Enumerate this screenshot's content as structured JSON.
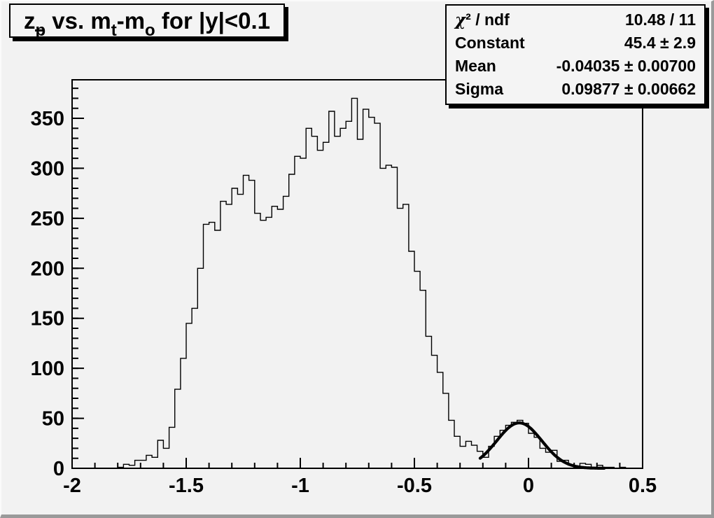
{
  "canvas": {
    "background_color": "#f2f2f2",
    "bevel_dark_color": "#9a9a9a",
    "bevel_light_color": "#fbfbfb",
    "ink_color": "#000000"
  },
  "title": {
    "plain": "z_p̄ vs. m_t-m_o for |y|<0.1",
    "segments": [
      {
        "text": "z",
        "role": "base"
      },
      {
        "text": "p",
        "role": "sub_overline"
      },
      {
        "text": " vs. m",
        "role": "base"
      },
      {
        "text": "t",
        "role": "sub"
      },
      {
        "text": "-m",
        "role": "base"
      },
      {
        "text": "o",
        "role": "sub"
      },
      {
        "text": " for |y|<0.1",
        "role": "base"
      }
    ]
  },
  "stats": {
    "rows": [
      {
        "label": "χ² / ndf",
        "value": "10.48 / 11",
        "label_has_chi": true
      },
      {
        "label": "Constant",
        "value": "45.4 ± 2.9",
        "label_has_chi": false
      },
      {
        "label": "Mean",
        "value": "-0.04035 ± 0.00700",
        "label_has_chi": false
      },
      {
        "label": "Sigma",
        "value": "0.09877 ± 0.00662",
        "label_has_chi": false
      }
    ]
  },
  "chart_data": {
    "type": "bar",
    "subtype": "step-histogram",
    "title": "z_p̄ vs. m_t-m_o for |y|<0.1",
    "xlabel": "",
    "ylabel": "",
    "xlim": [
      -2.0,
      0.5
    ],
    "ylim": [
      0,
      388.5
    ],
    "bin_width": 0.025,
    "x_start": -2.0,
    "values": [
      0,
      0,
      0,
      0,
      0,
      0,
      0,
      0,
      1,
      4,
      3,
      8,
      8,
      13,
      11,
      28,
      20,
      41,
      79,
      110,
      145,
      160,
      200,
      244,
      246,
      238,
      267,
      264,
      280,
      274,
      293,
      288,
      255,
      248,
      251,
      262,
      259,
      272,
      294,
      312,
      310,
      340,
      332,
      318,
      326,
      357,
      332,
      340,
      347,
      370,
      329,
      359,
      351,
      345,
      300,
      303,
      301,
      260,
      264,
      217,
      197,
      178,
      132,
      113,
      96,
      75,
      48,
      32,
      22,
      27,
      23,
      17,
      11,
      22,
      32,
      38,
      43,
      46,
      48,
      45,
      35,
      31,
      20,
      16,
      18,
      7,
      8,
      3,
      1,
      5,
      4,
      1,
      3,
      1,
      1,
      0,
      1,
      0,
      0,
      0
    ],
    "x_ticks_major": [
      -2,
      -1.5,
      -1,
      -0.5,
      0,
      0.5
    ],
    "x_tick_labels": [
      "-2",
      "-1.5",
      "-1",
      "-0.5",
      "0",
      "0.5"
    ],
    "x_minor_step": 0.1,
    "y_ticks_major": [
      0,
      50,
      100,
      150,
      200,
      250,
      300,
      350
    ],
    "y_tick_labels": [
      "0",
      "50",
      "100",
      "150",
      "200",
      "250",
      "300",
      "350"
    ],
    "y_minor_step": 10,
    "grid": false,
    "legend": "none",
    "line_color": "#000000",
    "fit": {
      "type": "gaussian",
      "constant": 45.4,
      "mean": -0.04035,
      "sigma": 0.09877,
      "draw_range": [
        -0.212,
        0.335
      ],
      "line_width": 4.2
    }
  }
}
